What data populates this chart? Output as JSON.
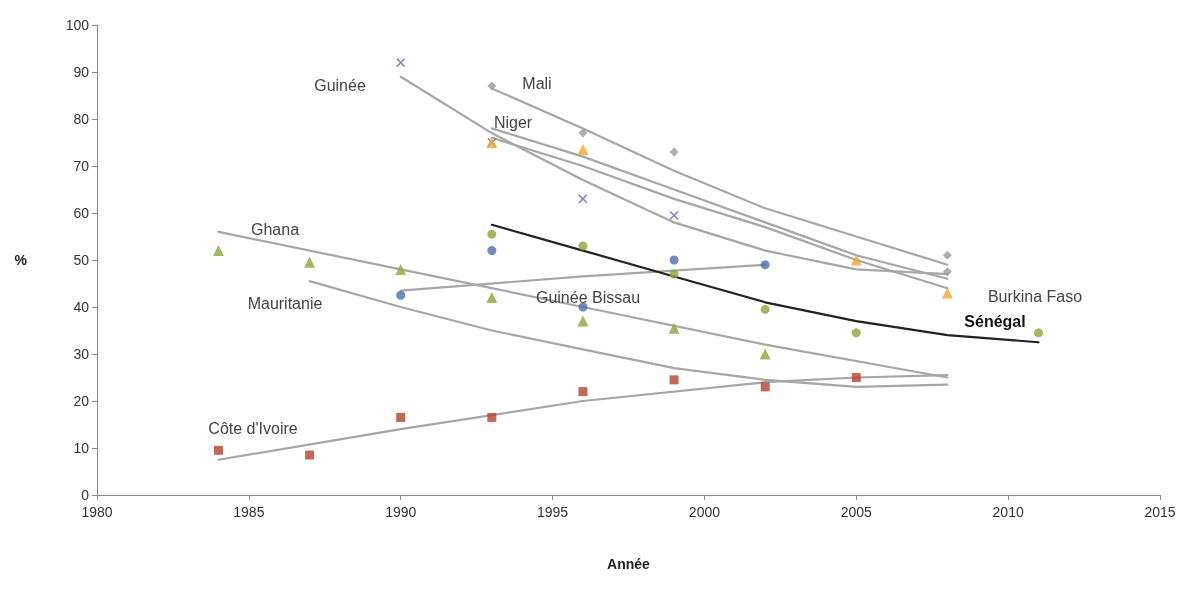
{
  "chart_data": {
    "type": "scatter",
    "xlabel": "Année",
    "ylabel": "%",
    "xlim": [
      1980,
      2015
    ],
    "xticks": [
      1980,
      1985,
      1990,
      1995,
      2000,
      2005,
      2010,
      2015
    ],
    "ylim": [
      0,
      100
    ],
    "yticks": [
      0,
      10,
      20,
      30,
      40,
      50,
      60,
      70,
      80,
      90,
      100
    ],
    "grid": false,
    "series": [
      {
        "type": "line",
        "marker": "none",
        "line_style": "solid",
        "color": "#a6a6a6",
        "x": [
          1990,
          1993,
          1996,
          1999,
          2002,
          2005,
          2008
        ],
        "values": [
          89,
          77,
          67,
          58,
          52,
          48,
          47
        ]
      },
      {
        "type": "line",
        "marker": "none",
        "line_style": "solid",
        "color": "#a6a6a6",
        "x": [
          1993,
          1996,
          1999,
          2002,
          2005,
          2008
        ],
        "values": [
          86.5,
          78,
          69,
          61,
          55,
          49
        ]
      },
      {
        "type": "line",
        "marker": "none",
        "line_style": "solid",
        "color": "#a6a6a6",
        "x": [
          1993,
          1996,
          1999,
          2002,
          2005,
          2008
        ],
        "values": [
          78,
          72,
          65,
          58,
          51,
          46
        ]
      },
      {
        "type": "line",
        "marker": "none",
        "line_style": "solid",
        "color": "#a6a6a6",
        "x": [
          1984,
          1990,
          1996,
          2002,
          2008
        ],
        "values": [
          56,
          48,
          40,
          32,
          25
        ]
      },
      {
        "type": "line",
        "marker": "none",
        "line_style": "solid",
        "color": "#a6a6a6",
        "x": [
          1987,
          1990,
          1993,
          1996,
          1999,
          2002,
          2005,
          2008
        ],
        "values": [
          45.5,
          40,
          35,
          31,
          27,
          24.5,
          23,
          23.5
        ]
      },
      {
        "type": "line",
        "marker": "none",
        "line_style": "solid",
        "color": "#a6a6a6",
        "x": [
          1990,
          1996,
          2002
        ],
        "values": [
          43.5,
          46.5,
          49
        ]
      },
      {
        "type": "line",
        "marker": "none",
        "line_style": "solid",
        "color": "#a6a6a6",
        "x": [
          1984,
          1990,
          1996,
          2002,
          2005,
          2008
        ],
        "values": [
          7.5,
          14,
          20,
          24,
          25,
          25.5
        ]
      },
      {
        "type": "line",
        "marker": "none",
        "line_style": "solid",
        "color": "#a6a6a6",
        "x": [
          1993,
          1996,
          1999,
          2002,
          2005,
          2008
        ],
        "values": [
          76,
          70,
          63,
          57,
          50,
          44
        ]
      },
      {
        "type": "line",
        "marker": "none",
        "line_style": "solid",
        "color": "#222222",
        "x": [
          1993,
          1996,
          1999,
          2002,
          2005,
          2008,
          2011
        ],
        "values": [
          57.5,
          52,
          46.5,
          41,
          37,
          34,
          32.5
        ]
      },
      {
        "marker": "cross",
        "color": "#6b6bb0",
        "x": [
          1990,
          1993,
          1996,
          1999
        ],
        "values": [
          92,
          75,
          63,
          59.5
        ]
      },
      {
        "marker": "diamond",
        "color": "#9a9a9a",
        "x": [
          1993,
          1996,
          1999,
          2008,
          2008
        ],
        "values": [
          87,
          77,
          73,
          51,
          47.5
        ]
      },
      {
        "marker": "triangle",
        "color": "#f0a830",
        "x": [
          1993,
          1996,
          2005,
          2008
        ],
        "values": [
          75,
          73.5,
          50,
          43
        ]
      },
      {
        "marker": "triangle",
        "color": "#8aa63a",
        "x": [
          1984,
          1987,
          1990,
          1993,
          1996,
          1999,
          2002
        ],
        "values": [
          52,
          49.5,
          48,
          42,
          37,
          35.5,
          30
        ]
      },
      {
        "marker": "circle",
        "color": "#4a6fb0",
        "x": [
          1990,
          1993,
          1996,
          1999,
          2002
        ],
        "values": [
          42.5,
          52,
          40,
          50,
          49
        ]
      },
      {
        "marker": "circle",
        "color": "#8aa63a",
        "x": [
          1993,
          1996,
          1999,
          2002,
          2005,
          2011
        ],
        "values": [
          55.5,
          53,
          47,
          39.5,
          34.5,
          34.5
        ]
      },
      {
        "marker": "square",
        "color": "#b5412c",
        "x": [
          1984,
          1987,
          1990,
          1993,
          1996,
          1999,
          2002,
          2005
        ],
        "values": [
          9.5,
          8.5,
          16.5,
          16.5,
          22,
          24.5,
          23,
          25
        ]
      }
    ],
    "annotations": [
      "Guinée",
      "Mali",
      "Niger",
      "Ghana",
      "Mauritanie",
      "Guinée Bissau",
      "Côte d'Ivoire",
      "Burkina Faso",
      "Sénégal"
    ]
  }
}
